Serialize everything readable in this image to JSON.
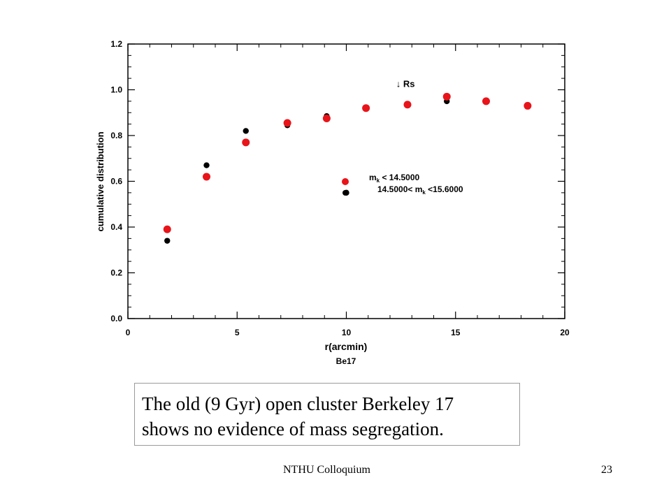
{
  "chart_data": {
    "type": "scatter",
    "xlabel": "r(arcmin)",
    "ylabel": "cumulative distribution",
    "subtitle": "Be17",
    "xlim": [
      0,
      20
    ],
    "ylim": [
      0,
      1.2
    ],
    "xticks": [
      "0",
      "5",
      "10",
      "15",
      "20"
    ],
    "yticks": [
      "0.0",
      "0.2",
      "0.4",
      "0.6",
      "0.8",
      "1.0",
      "1.2"
    ],
    "annotation": "↓ Rs",
    "annotation_point": [
      12.6,
      1.0
    ],
    "grid": false,
    "legend_position": "center-right",
    "series": [
      {
        "name": "m_k < 14.5000",
        "color": "#e8141a",
        "x": [
          1.8,
          3.6,
          5.4,
          7.3,
          9.1,
          10.9,
          12.8,
          14.6,
          16.4,
          18.3
        ],
        "y": [
          0.39,
          0.62,
          0.77,
          0.855,
          0.875,
          0.92,
          0.935,
          0.97,
          0.95,
          0.93
        ]
      },
      {
        "name": "14.5000< m_k <15.6000",
        "color": "#000000",
        "x": [
          1.8,
          3.6,
          5.4,
          7.3,
          9.1,
          10.0,
          10.9,
          12.8,
          14.6,
          16.4,
          18.3
        ],
        "y": [
          0.34,
          0.67,
          0.82,
          0.845,
          0.885,
          0.55,
          0.92,
          0.935,
          0.95,
          0.95,
          0.93
        ]
      }
    ],
    "legend": [
      {
        "label_pre": "m",
        "label_sub": "k",
        "label_post": " < 14.5000"
      },
      {
        "label_pre": "14.5000< m",
        "label_sub": "k",
        "label_post": " <15.6000"
      }
    ]
  },
  "caption": {
    "line1": "The old (9 Gyr) open cluster Berkeley 17",
    "line2": "shows no evidence of  mass segregation."
  },
  "footer": {
    "left": "NTHU Colloquium",
    "right": "23"
  }
}
